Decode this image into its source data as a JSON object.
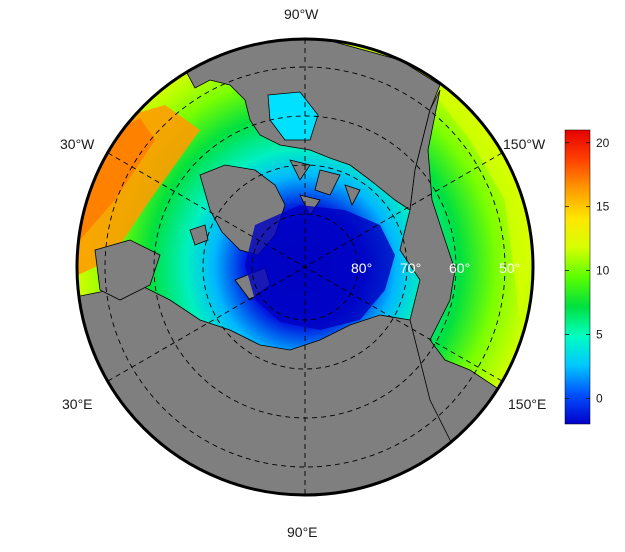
{
  "longitude_labels": {
    "top": "90°W",
    "bottom": "90°E",
    "upper_left": "30°W",
    "upper_right": "150°W",
    "lower_left": "30°E",
    "lower_right": "150°E"
  },
  "latitude_labels": [
    "80°",
    "70°",
    "60°",
    "50°"
  ],
  "colorbar": {
    "ticks": [
      "20",
      "15",
      "10",
      "5",
      "0"
    ],
    "tick_values": [
      20,
      15,
      10,
      5,
      0
    ],
    "range": [
      -2,
      21
    ],
    "colors": [
      "#0000c8",
      "#0050ff",
      "#00c8ff",
      "#00ffc0",
      "#00e040",
      "#5aff00",
      "#d6ff00",
      "#ffe600",
      "#ff9a00",
      "#ff4000",
      "#e60000"
    ]
  },
  "map": {
    "projection": "north-polar-stereographic",
    "ocean_color_scale": "sea-surface temperature (rainbow)",
    "land_color": "#7f7f7f",
    "graticule": "dashed"
  }
}
